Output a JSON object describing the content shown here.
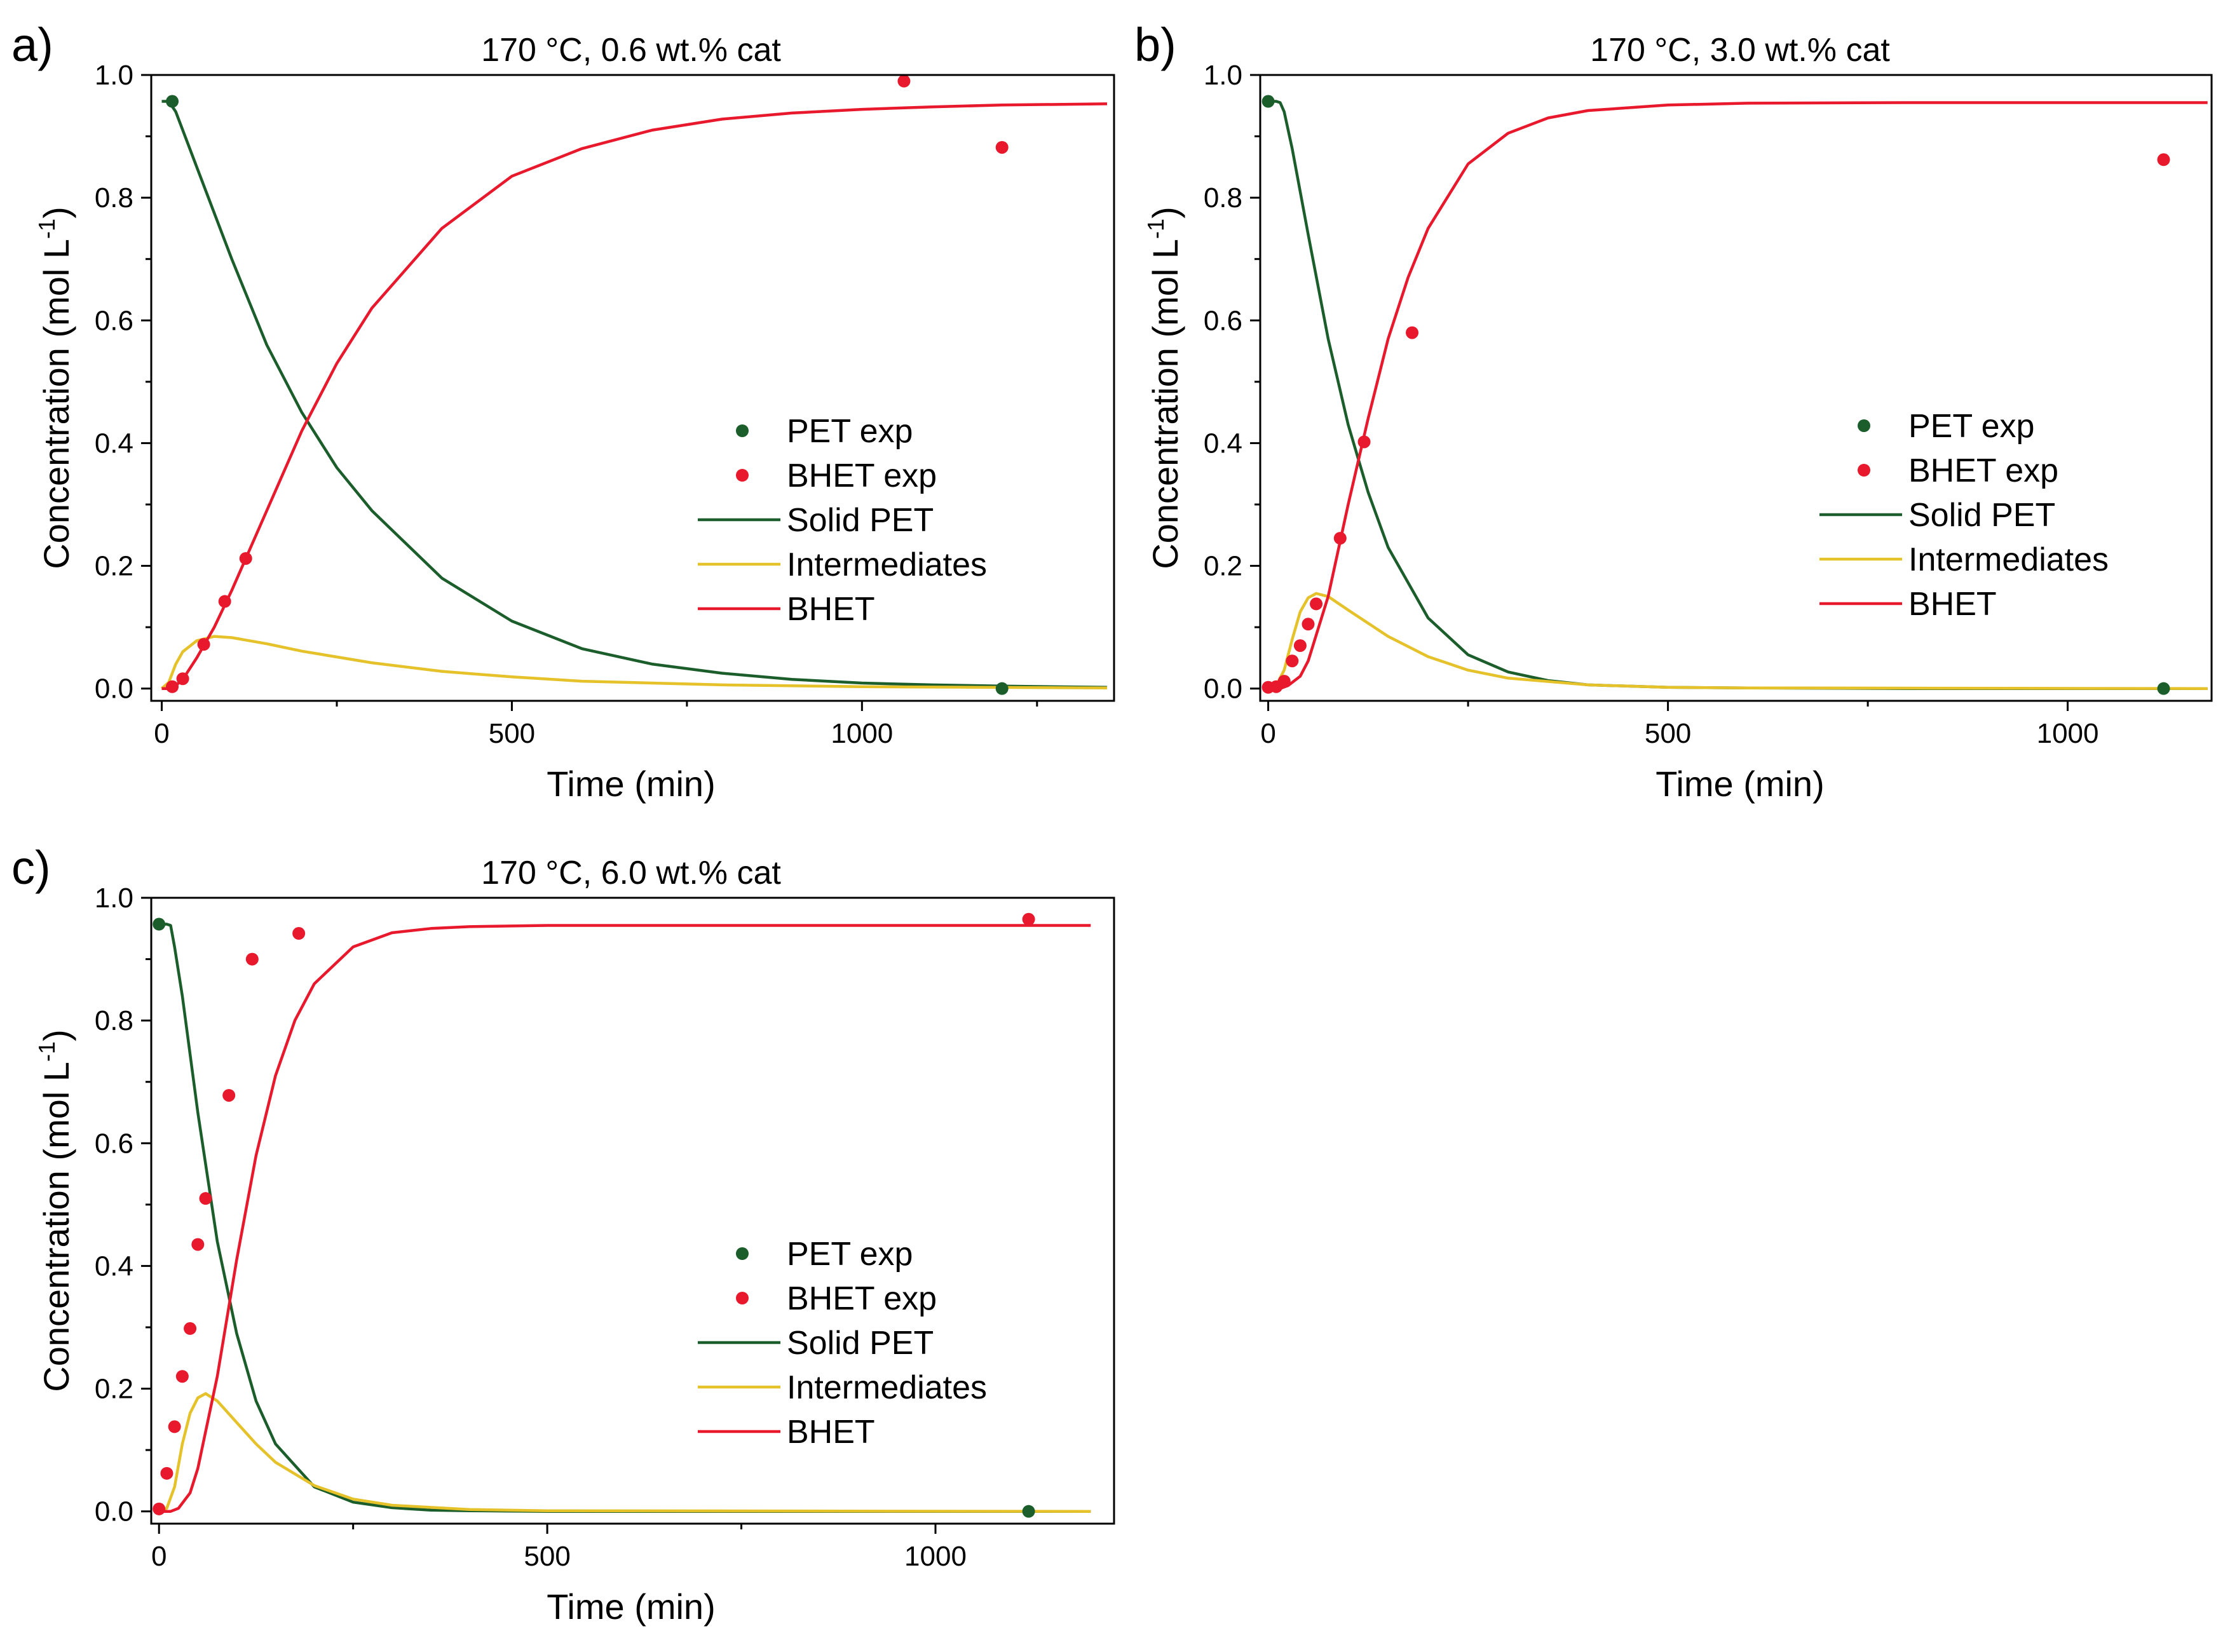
{
  "colors": {
    "pet": "#1b5e2b",
    "bhet": "#e8192c",
    "intermediates": "#e5c12a",
    "axis": "#000000"
  },
  "chart_data": [
    {
      "type": "line",
      "panel_label": "a)",
      "title": "170 °C, 0.6 wt.% cat",
      "xlabel": "Time (min)",
      "ylabel": "Concentration (mol L",
      "ylabel_sup": "-1",
      "ylabel_end": ")",
      "xlim": [
        -15,
        1360
      ],
      "ylim": [
        -0.02,
        1.0
      ],
      "xticks": [
        0,
        500,
        1000
      ],
      "yticks": [
        0.0,
        0.2,
        0.4,
        0.6,
        0.8,
        1.0
      ],
      "xticks_labels": [
        "0",
        "500",
        "1000"
      ],
      "yticks_labels": [
        "0.0",
        "0.2",
        "0.4",
        "0.6",
        "0.8",
        "1.0"
      ],
      "legend": [
        "PET exp",
        "BHET exp",
        "Solid PET",
        "Intermediates",
        "BHET"
      ],
      "series": [
        {
          "name": "PET exp",
          "kind": "scatter",
          "color": "#1b5e2b",
          "x": [
            15,
            1200
          ],
          "y": [
            0.957,
            0.0
          ]
        },
        {
          "name": "BHET exp",
          "kind": "scatter",
          "color": "#e8192c",
          "x": [
            15,
            30,
            60,
            90,
            120,
            1060,
            1200
          ],
          "y": [
            0.003,
            0.016,
            0.072,
            0.142,
            0.212,
            0.99,
            0.882
          ]
        },
        {
          "name": "Solid PET",
          "kind": "line",
          "color": "#1b5e2b",
          "x": [
            0,
            10,
            20,
            50,
            100,
            150,
            200,
            250,
            300,
            400,
            500,
            600,
            700,
            800,
            900,
            1000,
            1100,
            1200,
            1350
          ],
          "y": [
            0.957,
            0.957,
            0.94,
            0.85,
            0.7,
            0.56,
            0.45,
            0.36,
            0.29,
            0.18,
            0.11,
            0.065,
            0.04,
            0.025,
            0.015,
            0.009,
            0.006,
            0.004,
            0.002
          ]
        },
        {
          "name": "Intermediates",
          "kind": "line",
          "color": "#e5c12a",
          "x": [
            0,
            10,
            20,
            30,
            50,
            75,
            100,
            150,
            200,
            300,
            400,
            500,
            600,
            800,
            1000,
            1350
          ],
          "y": [
            0.0,
            0.01,
            0.04,
            0.06,
            0.078,
            0.085,
            0.083,
            0.073,
            0.061,
            0.042,
            0.028,
            0.019,
            0.012,
            0.006,
            0.003,
            0.001
          ]
        },
        {
          "name": "BHET",
          "kind": "line",
          "color": "#e8192c",
          "x": [
            0,
            10,
            20,
            30,
            50,
            75,
            100,
            150,
            200,
            250,
            300,
            400,
            500,
            600,
            700,
            800,
            900,
            1000,
            1100,
            1200,
            1350
          ],
          "y": [
            0.0,
            0.0,
            0.005,
            0.015,
            0.05,
            0.1,
            0.16,
            0.29,
            0.42,
            0.53,
            0.62,
            0.75,
            0.835,
            0.88,
            0.91,
            0.928,
            0.938,
            0.944,
            0.948,
            0.951,
            0.953
          ]
        }
      ]
    },
    {
      "type": "line",
      "panel_label": "b)",
      "title": "170 °C, 3.0 wt.% cat",
      "xlabel": "Time (min)",
      "ylabel": "Concentration (mol L",
      "ylabel_sup": "-1",
      "ylabel_end": ")",
      "xlim": [
        -10,
        1180
      ],
      "ylim": [
        -0.02,
        1.0
      ],
      "xticks": [
        0,
        500,
        1000
      ],
      "yticks": [
        0.0,
        0.2,
        0.4,
        0.6,
        0.8,
        1.0
      ],
      "xticks_labels": [
        "0",
        "500",
        "1000"
      ],
      "yticks_labels": [
        "0.0",
        "0.2",
        "0.4",
        "0.6",
        "0.8",
        "1.0"
      ],
      "legend": [
        "PET exp",
        "BHET exp",
        "Solid PET",
        "Intermediates",
        "BHET"
      ],
      "series": [
        {
          "name": "PET exp",
          "kind": "scatter",
          "color": "#1b5e2b",
          "x": [
            0,
            1120
          ],
          "y": [
            0.957,
            0.0
          ]
        },
        {
          "name": "BHET exp",
          "kind": "scatter",
          "color": "#e8192c",
          "x": [
            0,
            10,
            20,
            30,
            40,
            50,
            60,
            90,
            120,
            180,
            1120
          ],
          "y": [
            0.002,
            0.003,
            0.012,
            0.045,
            0.07,
            0.105,
            0.138,
            0.245,
            0.402,
            0.58,
            0.862
          ]
        },
        {
          "name": "Solid PET",
          "kind": "line",
          "color": "#1b5e2b",
          "x": [
            0,
            10,
            15,
            20,
            30,
            50,
            75,
            100,
            125,
            150,
            200,
            250,
            300,
            350,
            400,
            500,
            600,
            800,
            1175
          ],
          "y": [
            0.957,
            0.957,
            0.955,
            0.94,
            0.88,
            0.74,
            0.57,
            0.43,
            0.32,
            0.23,
            0.115,
            0.055,
            0.027,
            0.013,
            0.006,
            0.002,
            0.001,
            0.0,
            0.0
          ]
        },
        {
          "name": "Intermediates",
          "kind": "line",
          "color": "#e5c12a",
          "x": [
            0,
            10,
            20,
            30,
            40,
            50,
            60,
            75,
            100,
            150,
            200,
            250,
            300,
            400,
            500,
            600,
            1175
          ],
          "y": [
            0.0,
            0.005,
            0.03,
            0.08,
            0.125,
            0.148,
            0.155,
            0.15,
            0.128,
            0.085,
            0.052,
            0.03,
            0.017,
            0.006,
            0.002,
            0.001,
            0.0
          ]
        },
        {
          "name": "BHET",
          "kind": "line",
          "color": "#e8192c",
          "x": [
            0,
            15,
            25,
            40,
            50,
            75,
            100,
            125,
            150,
            175,
            200,
            250,
            300,
            350,
            400,
            500,
            600,
            800,
            1175
          ],
          "y": [
            0.0,
            0.0,
            0.005,
            0.02,
            0.045,
            0.15,
            0.3,
            0.44,
            0.57,
            0.67,
            0.75,
            0.855,
            0.905,
            0.93,
            0.942,
            0.951,
            0.954,
            0.955,
            0.955
          ]
        }
      ]
    },
    {
      "type": "line",
      "panel_label": "c)",
      "title": "170 °C, 6.0 wt.% cat",
      "xlabel": "Time (min)",
      "ylabel": "Concentration (mol L",
      "ylabel_sup": "-1",
      "ylabel_end": ")",
      "xlim": [
        -10,
        1230
      ],
      "ylim": [
        -0.02,
        1.0
      ],
      "xticks": [
        0,
        500,
        1000
      ],
      "yticks": [
        0.0,
        0.2,
        0.4,
        0.6,
        0.8,
        1.0
      ],
      "xticks_labels": [
        "0",
        "500",
        "1000"
      ],
      "yticks_labels": [
        "0.0",
        "0.2",
        "0.4",
        "0.6",
        "0.8",
        "1.0"
      ],
      "legend": [
        "PET exp",
        "BHET exp",
        "Solid PET",
        "Intermediates",
        "BHET"
      ],
      "series": [
        {
          "name": "PET exp",
          "kind": "scatter",
          "color": "#1b5e2b",
          "x": [
            0,
            1120
          ],
          "y": [
            0.957,
            0.0
          ]
        },
        {
          "name": "BHET exp",
          "kind": "scatter",
          "color": "#e8192c",
          "x": [
            0,
            10,
            20,
            30,
            40,
            50,
            60,
            90,
            120,
            180,
            1120
          ],
          "y": [
            0.004,
            0.062,
            0.138,
            0.22,
            0.298,
            0.435,
            0.51,
            0.678,
            0.9,
            0.942,
            0.965
          ]
        },
        {
          "name": "Solid PET",
          "kind": "line",
          "color": "#1b5e2b",
          "x": [
            0,
            10,
            15,
            20,
            30,
            50,
            75,
            100,
            125,
            150,
            200,
            250,
            300,
            350,
            400,
            500,
            600,
            800,
            1200
          ],
          "y": [
            0.957,
            0.957,
            0.955,
            0.92,
            0.84,
            0.65,
            0.44,
            0.29,
            0.18,
            0.11,
            0.04,
            0.015,
            0.006,
            0.002,
            0.001,
            0.0,
            0.0,
            0.0,
            0.0
          ]
        },
        {
          "name": "Intermediates",
          "kind": "line",
          "color": "#e5c12a",
          "x": [
            0,
            10,
            20,
            30,
            40,
            50,
            60,
            75,
            100,
            125,
            150,
            200,
            250,
            300,
            400,
            500,
            1200
          ],
          "y": [
            0.0,
            0.005,
            0.04,
            0.11,
            0.16,
            0.185,
            0.192,
            0.18,
            0.145,
            0.11,
            0.08,
            0.042,
            0.02,
            0.01,
            0.003,
            0.001,
            0.0
          ]
        },
        {
          "name": "BHET",
          "kind": "line",
          "color": "#e8192c",
          "x": [
            0,
            15,
            25,
            40,
            50,
            75,
            100,
            125,
            150,
            175,
            200,
            250,
            300,
            350,
            400,
            500,
            600,
            800,
            1200
          ],
          "y": [
            0.0,
            0.0,
            0.005,
            0.03,
            0.07,
            0.22,
            0.41,
            0.58,
            0.71,
            0.8,
            0.86,
            0.92,
            0.943,
            0.95,
            0.953,
            0.955,
            0.955,
            0.955,
            0.955
          ]
        }
      ]
    }
  ]
}
